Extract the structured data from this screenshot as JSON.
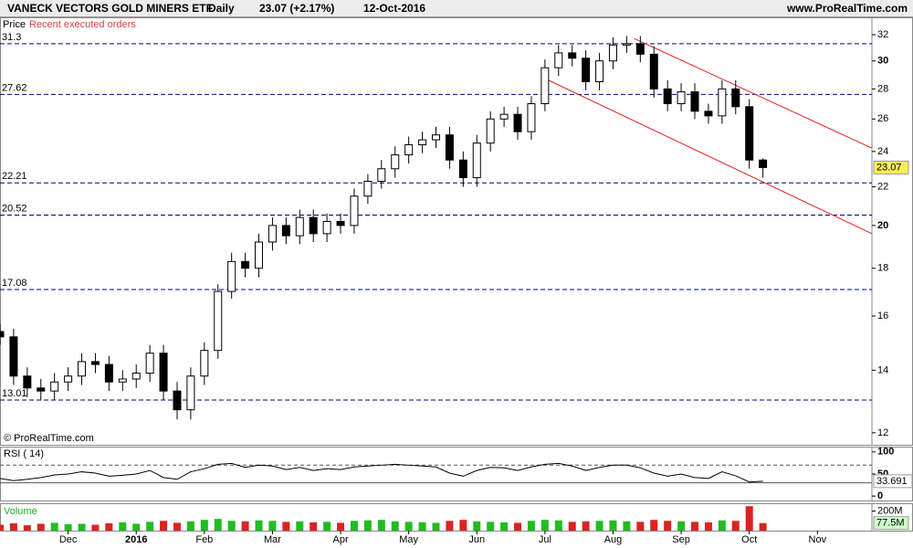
{
  "header": {
    "title": "VANECK VECTORS GOLD MINERS ETF",
    "period": "Daily",
    "quote": "23.07 (+2.17%)",
    "date": "12-Oct-2016",
    "site": "www.ProRealTime.com"
  },
  "chart_data": [
    {
      "type": "candlestick",
      "legend": [
        "Price",
        "Recent executed orders"
      ],
      "watermark": "© ProRealTime.com",
      "log_scale": true,
      "xlim": [
        -1.0,
        11.8
      ],
      "ylim": [
        11.65,
        33.4
      ],
      "yticks": [
        12,
        14,
        16,
        18,
        20,
        22,
        24,
        26,
        28,
        30,
        32
      ],
      "xticks": [
        {
          "value": 0,
          "label": "Dec"
        },
        {
          "value": 1,
          "label": "2016"
        },
        {
          "value": 2,
          "label": "Feb"
        },
        {
          "value": 3,
          "label": "Mar"
        },
        {
          "value": 4,
          "label": "Apr"
        },
        {
          "value": 5,
          "label": "May"
        },
        {
          "value": 6,
          "label": "Jun"
        },
        {
          "value": 7,
          "label": "Jul"
        },
        {
          "value": 8,
          "label": "Aug"
        },
        {
          "value": 9,
          "label": "Sep"
        },
        {
          "value": 10,
          "label": "Oct"
        },
        {
          "value": 11,
          "label": "Nov"
        }
      ],
      "levels": [
        31.3,
        27.62,
        22.21,
        20.52,
        17.08,
        13.01
      ],
      "trendlines": [
        {
          "color": "#e02020",
          "x": [
            8.31,
            11.8
          ],
          "y": [
            31.7,
            24.2
          ]
        },
        {
          "color": "#e02020",
          "x": [
            7.01,
            11.8
          ],
          "y": [
            28.7,
            19.6
          ]
        }
      ],
      "x": [
        -1.0,
        -0.8,
        -0.6,
        -0.4,
        -0.2,
        0.0,
        0.2,
        0.4,
        0.6,
        0.8,
        1.0,
        1.2,
        1.4,
        1.6,
        1.8,
        2.0,
        2.2,
        2.4,
        2.6,
        2.8,
        3.0,
        3.2,
        3.4,
        3.6,
        3.8,
        4.0,
        4.2,
        4.4,
        4.6,
        4.8,
        5.0,
        5.2,
        5.4,
        5.6,
        5.8,
        6.0,
        6.2,
        6.4,
        6.6,
        6.8,
        7.0,
        7.2,
        7.4,
        7.6,
        7.8,
        8.0,
        8.2,
        8.4,
        8.6,
        8.8,
        9.0,
        9.2,
        9.4,
        9.6,
        9.8,
        10.0,
        10.2
      ],
      "open": [
        15.4,
        15.2,
        13.8,
        13.4,
        13.3,
        13.6,
        13.8,
        14.3,
        14.2,
        13.6,
        13.7,
        13.9,
        14.6,
        13.3,
        12.7,
        13.8,
        14.7,
        17.0,
        18.3,
        18.0,
        19.2,
        20.0,
        19.5,
        20.4,
        19.6,
        20.2,
        20.0,
        21.5,
        22.3,
        23.0,
        23.8,
        24.4,
        24.7,
        25.0,
        23.5,
        22.5,
        24.5,
        26.0,
        26.3,
        25.2,
        27.0,
        29.5,
        30.6,
        30.2,
        28.5,
        30.0,
        31.2,
        31.3,
        30.5,
        28.0,
        27.0,
        27.8,
        26.5,
        26.2,
        28.0,
        26.8,
        23.5
      ],
      "high": [
        15.7,
        15.5,
        14.1,
        13.7,
        13.9,
        14.1,
        14.6,
        14.6,
        14.5,
        14.0,
        14.2,
        14.9,
        14.9,
        13.6,
        14.1,
        15.0,
        17.3,
        18.7,
        18.7,
        19.6,
        20.4,
        20.4,
        20.8,
        20.8,
        20.6,
        20.6,
        21.9,
        22.7,
        23.5,
        24.3,
        24.9,
        25.2,
        25.5,
        25.5,
        24.0,
        25.0,
        26.5,
        26.8,
        26.8,
        27.5,
        30.1,
        31.2,
        31.2,
        30.8,
        30.6,
        31.8,
        31.9,
        31.9,
        31.1,
        28.6,
        28.4,
        28.4,
        27.0,
        28.6,
        28.6,
        27.3,
        23.6
      ],
      "low": [
        14.9,
        13.5,
        13.1,
        13.0,
        13.0,
        13.3,
        13.5,
        13.9,
        13.3,
        13.3,
        13.4,
        13.6,
        13.0,
        12.4,
        12.4,
        13.5,
        14.4,
        16.7,
        17.6,
        17.6,
        18.8,
        19.1,
        19.1,
        19.2,
        19.2,
        19.6,
        19.6,
        21.1,
        21.9,
        22.5,
        23.3,
        23.9,
        24.2,
        23.0,
        22.0,
        22.0,
        24.0,
        25.5,
        24.7,
        24.7,
        26.5,
        28.9,
        29.6,
        27.9,
        27.9,
        29.4,
        30.6,
        29.9,
        27.4,
        26.5,
        26.5,
        26.0,
        25.7,
        25.7,
        26.3,
        23.0,
        22.5
      ],
      "close": [
        15.2,
        13.8,
        13.4,
        13.3,
        13.6,
        13.8,
        14.3,
        14.2,
        13.6,
        13.7,
        13.9,
        14.6,
        13.3,
        12.7,
        13.8,
        14.7,
        17.0,
        18.3,
        18.0,
        19.2,
        20.0,
        19.5,
        20.4,
        19.6,
        20.2,
        20.0,
        21.5,
        22.3,
        23.0,
        23.8,
        24.4,
        24.7,
        25.0,
        23.5,
        22.5,
        24.5,
        26.0,
        26.3,
        25.2,
        27.0,
        29.5,
        30.6,
        30.2,
        28.5,
        30.0,
        31.2,
        31.3,
        30.5,
        28.0,
        27.0,
        27.8,
        26.5,
        26.2,
        28.0,
        26.8,
        23.5,
        23.07
      ]
    },
    {
      "type": "line",
      "title": "RSI ( 14)",
      "color": "#000000",
      "ylim": [
        -10,
        112
      ],
      "yticks": [
        0,
        50,
        100
      ],
      "levels": [
        30,
        70
      ],
      "values": [
        40,
        35,
        38,
        42,
        48,
        50,
        55,
        52,
        45,
        47,
        50,
        58,
        42,
        38,
        55,
        62,
        72,
        74,
        65,
        70,
        68,
        60,
        65,
        58,
        62,
        60,
        66,
        68,
        70,
        72,
        70,
        68,
        66,
        52,
        45,
        58,
        65,
        64,
        58,
        66,
        72,
        74,
        68,
        58,
        65,
        70,
        70,
        64,
        52,
        45,
        50,
        42,
        40,
        55,
        46,
        32,
        33.691
      ]
    },
    {
      "type": "bar",
      "title": "Volume",
      "up_color": "#22bb22",
      "down_color": "#dd2222",
      "ylim": [
        0,
        280000000
      ],
      "yticks": [
        {
          "value": 200000000,
          "label": "200M"
        }
      ],
      "last_label": "77.5M",
      "values": [
        60000000,
        75000000,
        55000000,
        70000000,
        80000000,
        65000000,
        70000000,
        60000000,
        75000000,
        85000000,
        70000000,
        90000000,
        100000000,
        80000000,
        95000000,
        110000000,
        120000000,
        100000000,
        95000000,
        105000000,
        100000000,
        90000000,
        95000000,
        85000000,
        90000000,
        80000000,
        100000000,
        105000000,
        110000000,
        95000000,
        90000000,
        85000000,
        80000000,
        100000000,
        110000000,
        95000000,
        90000000,
        85000000,
        80000000,
        100000000,
        110000000,
        105000000,
        90000000,
        95000000,
        100000000,
        105000000,
        95000000,
        90000000,
        110000000,
        100000000,
        95000000,
        90000000,
        85000000,
        105000000,
        100000000,
        250000000,
        77500000
      ]
    }
  ]
}
